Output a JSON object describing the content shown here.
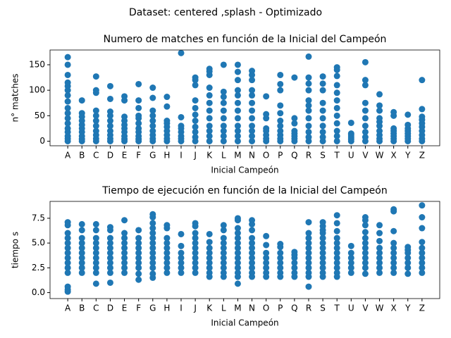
{
  "figure_title": "Dataset: centered ,splash - Optimizado",
  "chart_data": [
    {
      "type": "scatter",
      "title": "Numero de matches en función de la Inicial del Campeón",
      "xlabel": "Inicial Campeón",
      "ylabel": "n° matches",
      "color": "#1f77b4",
      "categories": [
        "A",
        "B",
        "C",
        "D",
        "E",
        "F",
        "G",
        "H",
        "I",
        "J",
        "K",
        "L",
        "M",
        "N",
        "O",
        "P",
        "Q",
        "R",
        "S",
        "T",
        "U",
        "V",
        "W",
        "X",
        "Y",
        "Z"
      ],
      "ylim": [
        -9,
        179
      ],
      "yticks": [
        0,
        50,
        100,
        150
      ],
      "values": [
        [
          0,
          5,
          10,
          18,
          25,
          35,
          45,
          55,
          65,
          78,
          90,
          100,
          108,
          115,
          130,
          150,
          165
        ],
        [
          0,
          4,
          10,
          18,
          25,
          32,
          40,
          48,
          55,
          80
        ],
        [
          0,
          5,
          12,
          20,
          30,
          40,
          50,
          60,
          95,
          100,
          127
        ],
        [
          0,
          5,
          12,
          20,
          30,
          40,
          50,
          58,
          83,
          108
        ],
        [
          0,
          4,
          10,
          18,
          25,
          32,
          40,
          48,
          80,
          88
        ],
        [
          0,
          4,
          10,
          18,
          25,
          35,
          45,
          50,
          65,
          80,
          112
        ],
        [
          0,
          5,
          12,
          20,
          30,
          40,
          50,
          60,
          85,
          105
        ],
        [
          0,
          5,
          12,
          20,
          28,
          35,
          40,
          68,
          87
        ],
        [
          0,
          5,
          10,
          18,
          25,
          30,
          47,
          173
        ],
        [
          0,
          8,
          18,
          28,
          40,
          52,
          65,
          80,
          110,
          120,
          125
        ],
        [
          0,
          10,
          20,
          30,
          45,
          60,
          75,
          90,
          105,
          130,
          137,
          142
        ],
        [
          0,
          10,
          20,
          30,
          45,
          60,
          75,
          87,
          97,
          150
        ],
        [
          0,
          10,
          20,
          30,
          45,
          60,
          75,
          90,
          100,
          120,
          136,
          150
        ],
        [
          0,
          10,
          20,
          30,
          45,
          60,
          75,
          90,
          100,
          120,
          130,
          138
        ],
        [
          0,
          5,
          12,
          20,
          25,
          45,
          53,
          88
        ],
        [
          0,
          5,
          12,
          20,
          30,
          40,
          55,
          70,
          100,
          112,
          130
        ],
        [
          0,
          5,
          10,
          15,
          20,
          35,
          45,
          125
        ],
        [
          0,
          8,
          18,
          30,
          45,
          60,
          70,
          80,
          100,
          113,
          125,
          166
        ],
        [
          0,
          8,
          18,
          30,
          45,
          60,
          75,
          100,
          113,
          127
        ],
        [
          0,
          10,
          20,
          35,
          50,
          65,
          80,
          95,
          110,
          128,
          140,
          145
        ],
        [
          0,
          4,
          8,
          12,
          15,
          36
        ],
        [
          0,
          8,
          18,
          30,
          45,
          60,
          75,
          110,
          120,
          155
        ],
        [
          0,
          5,
          12,
          20,
          30,
          38,
          45,
          60,
          70,
          92
        ],
        [
          0,
          5,
          10,
          15,
          20,
          25,
          50,
          57
        ],
        [
          0,
          5,
          10,
          15,
          20,
          25,
          32,
          52
        ],
        [
          0,
          5,
          12,
          20,
          28,
          35,
          42,
          48,
          63,
          120
        ]
      ]
    },
    {
      "type": "scatter",
      "title": "Tiempo de ejecución en función de la Inicial del Campeón",
      "xlabel": "Inicial Campeón",
      "ylabel": "tiempo s",
      "color": "#1f77b4",
      "categories": [
        "A",
        "B",
        "C",
        "D",
        "E",
        "F",
        "G",
        "H",
        "I",
        "J",
        "K",
        "L",
        "M",
        "N",
        "O",
        "P",
        "Q",
        "R",
        "S",
        "T",
        "U",
        "V",
        "W",
        "X",
        "Y",
        "Z"
      ],
      "ylim": [
        -0.6,
        9.2
      ],
      "yticks": [
        {
          "value": 0,
          "label": "0.0"
        },
        2.5,
        {
          "value": 5,
          "label": "5.0"
        },
        7.5
      ],
      "values": [
        [
          0.1,
          0.3,
          0.6,
          2.0,
          2.5,
          3.0,
          3.5,
          4.0,
          4.5,
          5.0,
          5.5,
          6.0,
          6.8,
          7.1
        ],
        [
          2.0,
          2.5,
          3.0,
          3.5,
          4.0,
          4.5,
          5.0,
          5.5,
          6.3,
          6.9
        ],
        [
          0.9,
          2.0,
          2.5,
          3.0,
          3.5,
          4.0,
          4.5,
          5.0,
          5.5,
          6.3,
          6.9
        ],
        [
          1.0,
          2.0,
          2.5,
          3.0,
          3.5,
          4.0,
          4.5,
          5.0,
          5.5,
          6.3,
          6.6
        ],
        [
          2.0,
          2.5,
          3.0,
          3.5,
          4.0,
          4.5,
          5.0,
          5.5,
          6.0,
          7.3
        ],
        [
          1.3,
          1.9,
          2.5,
          3.0,
          3.5,
          4.0,
          4.5,
          5.0,
          5.5,
          6.3
        ],
        [
          1.5,
          1.9,
          2.5,
          3.0,
          3.5,
          4.0,
          4.5,
          5.0,
          5.5,
          6.0,
          6.5,
          7.0,
          7.6,
          7.9
        ],
        [
          2.0,
          2.5,
          3.0,
          3.5,
          4.0,
          4.5,
          5.0,
          5.5,
          6.5,
          6.8
        ],
        [
          2.0,
          2.5,
          3.0,
          3.5,
          4.0,
          4.7,
          5.9
        ],
        [
          2.0,
          2.5,
          3.0,
          3.5,
          4.0,
          4.5,
          5.0,
          5.5,
          6.0,
          6.7,
          7.0
        ],
        [
          1.6,
          2.0,
          2.5,
          3.0,
          3.5,
          4.0,
          4.5,
          5.1,
          5.9
        ],
        [
          1.6,
          2.0,
          2.5,
          3.0,
          3.5,
          4.0,
          4.5,
          5.0,
          5.5,
          6.3,
          6.8
        ],
        [
          0.9,
          1.6,
          2.0,
          2.5,
          3.0,
          3.5,
          4.0,
          4.5,
          5.0,
          5.5,
          6.0,
          6.5,
          7.3,
          7.5
        ],
        [
          1.6,
          2.0,
          2.5,
          3.0,
          3.5,
          4.0,
          4.5,
          5.0,
          5.5,
          6.3,
          6.9,
          7.3
        ],
        [
          1.6,
          2.0,
          2.5,
          3.0,
          3.5,
          4.0,
          4.8,
          5.7
        ],
        [
          1.6,
          2.0,
          2.5,
          3.0,
          3.5,
          4.0,
          4.6,
          4.9
        ],
        [
          1.6,
          2.0,
          2.5,
          3.0,
          3.5,
          3.8,
          4.1
        ],
        [
          0.6,
          1.6,
          2.0,
          2.5,
          3.0,
          3.5,
          4.0,
          4.5,
          5.0,
          5.5,
          6.0,
          7.1
        ],
        [
          1.6,
          2.0,
          2.5,
          3.0,
          3.5,
          4.0,
          4.5,
          5.0,
          5.5,
          6.0,
          6.3,
          6.7,
          7.1
        ],
        [
          1.6,
          2.0,
          2.5,
          3.0,
          3.5,
          4.0,
          4.5,
          5.0,
          5.5,
          6.2,
          7.0,
          7.8
        ],
        [
          2.0,
          2.5,
          3.0,
          3.5,
          4.0,
          4.7
        ],
        [
          1.9,
          2.5,
          3.0,
          3.5,
          4.0,
          4.5,
          5.0,
          5.5,
          6.1,
          6.8,
          7.3,
          7.6
        ],
        [
          2.0,
          2.5,
          3.0,
          3.5,
          4.0,
          4.5,
          5.2,
          6.0,
          6.8
        ],
        [
          2.0,
          2.5,
          3.0,
          3.5,
          4.0,
          4.5,
          5.0,
          6.2,
          8.2,
          8.4
        ],
        [
          1.9,
          2.5,
          3.0,
          3.5,
          4.0,
          4.3,
          4.6
        ],
        [
          2.0,
          2.5,
          3.0,
          3.5,
          4.0,
          4.5,
          5.1,
          6.5,
          7.6,
          8.8
        ]
      ]
    }
  ]
}
